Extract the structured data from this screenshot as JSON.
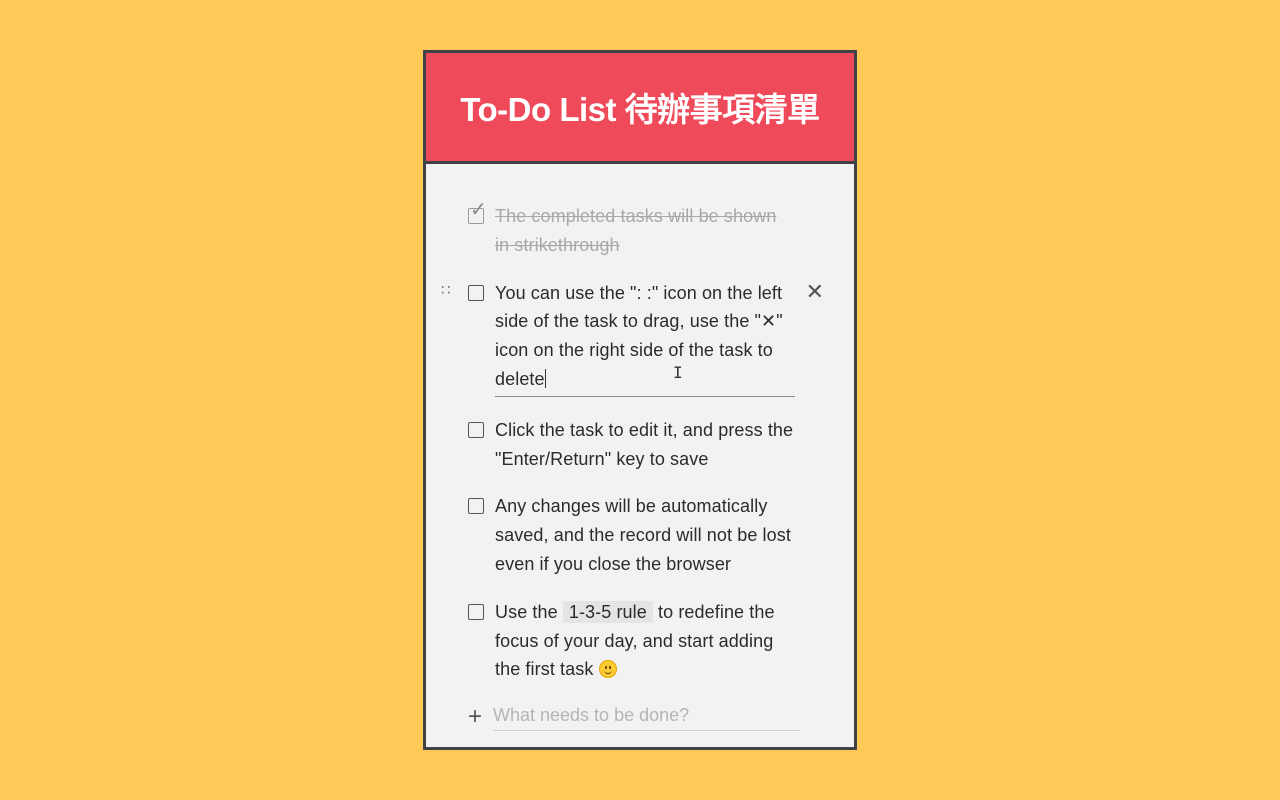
{
  "header": {
    "title": "To-Do List 待辦事項清單"
  },
  "tasks": [
    {
      "text": "The completed tasks will be shown in strikethrough",
      "completed": true
    },
    {
      "text_before_caret": "You can use the \": :\" icon on the left side of the task to drag, use the \"✕\" icon on the right side of the task to delete",
      "completed": false,
      "drag_handle": "∷",
      "delete_icon": "✕"
    },
    {
      "text": "Click the task to edit it, and press the \"Enter/Return\" key to save",
      "completed": false
    },
    {
      "text": "Any changes will be automatically saved, and the record will not be lost even if you close the browser",
      "completed": false
    },
    {
      "text_prefix": "Use the",
      "code": "1-3-5 rule",
      "text_suffix": "to redefine the focus of your day, and start adding the first task",
      "completed": false
    }
  ],
  "add_task": {
    "placeholder": "What needs to be done?"
  },
  "colors": {
    "background": "#FFC857",
    "header": "#EF4A5A",
    "card": "#F2F2F2",
    "border": "#3F4346"
  },
  "icons": {
    "completed_check": "check-icon",
    "drag": "drag-handle-icon",
    "delete": "close-icon",
    "add": "plus-icon",
    "emoji": "smile-emoji-icon"
  }
}
